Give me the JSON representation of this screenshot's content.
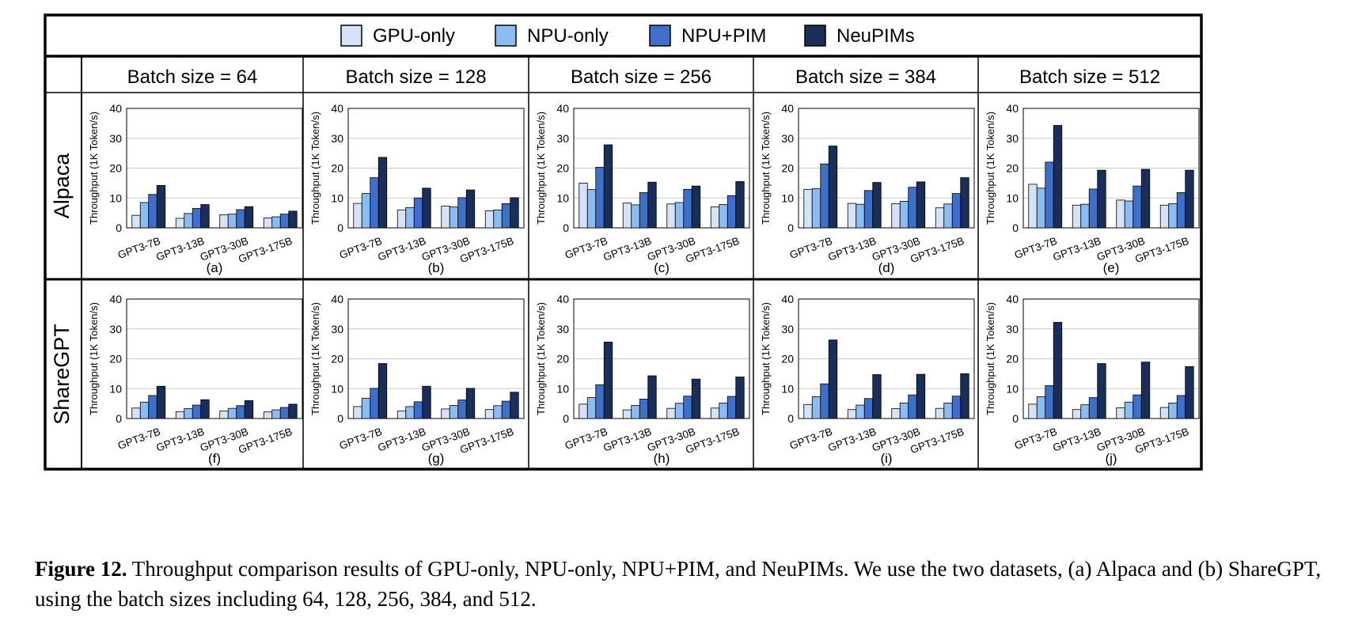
{
  "legend": [
    {
      "label": "GPU-only",
      "color": "#d6e2f5"
    },
    {
      "label": "NPU-only",
      "color": "#8cbcf4"
    },
    {
      "label": "NPU+PIM",
      "color": "#3f6fc8"
    },
    {
      "label": "NeuPIMs",
      "color": "#1a2e5a"
    }
  ],
  "columns": [
    "Batch size = 64",
    "Batch size = 128",
    "Batch size = 256",
    "Batch size = 384",
    "Batch size = 512"
  ],
  "rows": [
    "Alpaca",
    "ShareGPT"
  ],
  "caption": {
    "label": "Figure 12.",
    "text": " Throughput comparison results of GPU-only, NPU-only, NPU+PIM, and NeuPIMs. We use the two datasets, (a) Alpaca and (b) ShareGPT, using the batch sizes including 64, 128, 256, 384, and 512."
  },
  "chart_data": [
    {
      "type": "bar",
      "label": "(a)",
      "dataset": "Alpaca",
      "batch": 64,
      "ylabel": "Throughput (1K Token/s)",
      "ylim": [
        0,
        40
      ],
      "yticks": [
        0,
        10,
        20,
        30,
        40
      ],
      "categories": [
        "GPT3-7B",
        "GPT3-13B",
        "GPT3-30B",
        "GPT3-175B"
      ],
      "series": [
        {
          "name": "GPU-only",
          "values": [
            4.2,
            3.2,
            4.4,
            3.3
          ]
        },
        {
          "name": "NPU-only",
          "values": [
            8.5,
            4.8,
            4.6,
            3.7
          ]
        },
        {
          "name": "NPU+PIM",
          "values": [
            11.2,
            6.5,
            6.1,
            4.6
          ]
        },
        {
          "name": "NeuPIMs",
          "values": [
            14.2,
            7.8,
            7.1,
            5.6
          ]
        }
      ]
    },
    {
      "type": "bar",
      "label": "(b)",
      "dataset": "Alpaca",
      "batch": 128,
      "ylabel": "Throughput (1K Token/s)",
      "ylim": [
        0,
        40
      ],
      "yticks": [
        0,
        10,
        20,
        30,
        40
      ],
      "categories": [
        "GPT3-7B",
        "GPT3-13B",
        "GPT3-30B",
        "GPT3-175B"
      ],
      "series": [
        {
          "name": "GPU-only",
          "values": [
            8.2,
            6.0,
            7.3,
            5.7
          ]
        },
        {
          "name": "NPU-only",
          "values": [
            11.5,
            6.8,
            7.0,
            6.0
          ]
        },
        {
          "name": "NPU+PIM",
          "values": [
            16.8,
            10.0,
            10.1,
            8.1
          ]
        },
        {
          "name": "NeuPIMs",
          "values": [
            23.6,
            13.3,
            12.7,
            10.1
          ]
        }
      ]
    },
    {
      "type": "bar",
      "label": "(c)",
      "dataset": "Alpaca",
      "batch": 256,
      "ylabel": "Throughput (1K Token/s)",
      "ylim": [
        0,
        40
      ],
      "yticks": [
        0,
        10,
        20,
        30,
        40
      ],
      "categories": [
        "GPT3-7B",
        "GPT3-13B",
        "GPT3-30B",
        "GPT3-175B"
      ],
      "series": [
        {
          "name": "GPU-only",
          "values": [
            15.0,
            8.3,
            8.0,
            7.0
          ]
        },
        {
          "name": "NPU-only",
          "values": [
            12.8,
            7.7,
            8.5,
            7.8
          ]
        },
        {
          "name": "NPU+PIM",
          "values": [
            20.3,
            11.8,
            12.9,
            10.8
          ]
        },
        {
          "name": "NeuPIMs",
          "values": [
            27.8,
            15.3,
            14.0,
            15.5
          ]
        }
      ]
    },
    {
      "type": "bar",
      "label": "(d)",
      "dataset": "Alpaca",
      "batch": 384,
      "ylabel": "Throughput (1K Token/s)",
      "ylim": [
        0,
        40
      ],
      "yticks": [
        0,
        10,
        20,
        30,
        40
      ],
      "categories": [
        "GPT3-7B",
        "GPT3-13B",
        "GPT3-30B",
        "GPT3-175B"
      ],
      "series": [
        {
          "name": "GPU-only",
          "values": [
            12.9,
            8.2,
            8.1,
            6.7
          ]
        },
        {
          "name": "NPU-only",
          "values": [
            13.1,
            7.9,
            8.9,
            8.0
          ]
        },
        {
          "name": "NPU+PIM",
          "values": [
            21.4,
            12.5,
            13.6,
            11.5
          ]
        },
        {
          "name": "NeuPIMs",
          "values": [
            27.4,
            15.2,
            15.4,
            16.8
          ]
        }
      ]
    },
    {
      "type": "bar",
      "label": "(e)",
      "dataset": "Alpaca",
      "batch": 512,
      "ylabel": "Throughput (1K Token/s)",
      "ylim": [
        0,
        40
      ],
      "yticks": [
        0,
        10,
        20,
        30,
        40
      ],
      "categories": [
        "GPT3-7B",
        "GPT3-13B",
        "GPT3-30B",
        "GPT3-175B"
      ],
      "series": [
        {
          "name": "GPU-only",
          "values": [
            14.6,
            7.6,
            9.3,
            7.6
          ]
        },
        {
          "name": "NPU-only",
          "values": [
            13.3,
            7.9,
            9.0,
            8.1
          ]
        },
        {
          "name": "NPU+PIM",
          "values": [
            22.0,
            13.0,
            14.0,
            11.8
          ]
        },
        {
          "name": "NeuPIMs",
          "values": [
            34.3,
            19.3,
            19.6,
            19.3
          ]
        }
      ]
    },
    {
      "type": "bar",
      "label": "(f)",
      "dataset": "ShareGPT",
      "batch": 64,
      "ylabel": "Throughput (1K Token/s)",
      "ylim": [
        0,
        40
      ],
      "yticks": [
        0,
        10,
        20,
        30,
        40
      ],
      "categories": [
        "GPT3-7B",
        "GPT3-13B",
        "GPT3-30B",
        "GPT3-175B"
      ],
      "series": [
        {
          "name": "GPU-only",
          "values": [
            3.5,
            2.3,
            2.5,
            2.2
          ]
        },
        {
          "name": "NPU-only",
          "values": [
            5.5,
            3.3,
            3.4,
            2.9
          ]
        },
        {
          "name": "NPU+PIM",
          "values": [
            7.7,
            4.5,
            4.3,
            3.7
          ]
        },
        {
          "name": "NeuPIMs",
          "values": [
            10.8,
            6.3,
            6.0,
            4.8
          ]
        }
      ]
    },
    {
      "type": "bar",
      "label": "(g)",
      "dataset": "ShareGPT",
      "batch": 128,
      "ylabel": "Throughput (1K Token/s)",
      "ylim": [
        0,
        40
      ],
      "yticks": [
        0,
        10,
        20,
        30,
        40
      ],
      "categories": [
        "GPT3-7B",
        "GPT3-13B",
        "GPT3-30B",
        "GPT3-175B"
      ],
      "series": [
        {
          "name": "GPU-only",
          "values": [
            4.0,
            2.5,
            3.2,
            3.0
          ]
        },
        {
          "name": "NPU-only",
          "values": [
            6.8,
            4.0,
            4.4,
            4.3
          ]
        },
        {
          "name": "NPU+PIM",
          "values": [
            10.1,
            5.6,
            6.2,
            5.8
          ]
        },
        {
          "name": "NeuPIMs",
          "values": [
            18.4,
            10.8,
            10.1,
            8.8
          ]
        }
      ]
    },
    {
      "type": "bar",
      "label": "(h)",
      "dataset": "ShareGPT",
      "batch": 256,
      "ylabel": "Throughput (1K Token/s)",
      "ylim": [
        0,
        40
      ],
      "yticks": [
        0,
        10,
        20,
        30,
        40
      ],
      "categories": [
        "GPT3-7B",
        "GPT3-13B",
        "GPT3-30B",
        "GPT3-175B"
      ],
      "series": [
        {
          "name": "GPU-only",
          "values": [
            4.8,
            2.9,
            3.4,
            3.5
          ]
        },
        {
          "name": "NPU-only",
          "values": [
            7.0,
            4.4,
            5.1,
            5.2
          ]
        },
        {
          "name": "NPU+PIM",
          "values": [
            11.3,
            6.5,
            7.5,
            7.4
          ]
        },
        {
          "name": "NeuPIMs",
          "values": [
            25.6,
            14.3,
            13.2,
            13.9
          ]
        }
      ]
    },
    {
      "type": "bar",
      "label": "(i)",
      "dataset": "ShareGPT",
      "batch": 384,
      "ylabel": "Throughput (1K Token/s)",
      "ylim": [
        0,
        40
      ],
      "yticks": [
        0,
        10,
        20,
        30,
        40
      ],
      "categories": [
        "GPT3-7B",
        "GPT3-13B",
        "GPT3-30B",
        "GPT3-175B"
      ],
      "series": [
        {
          "name": "GPU-only",
          "values": [
            4.7,
            3.0,
            3.3,
            3.4
          ]
        },
        {
          "name": "NPU-only",
          "values": [
            7.3,
            4.5,
            5.2,
            5.2
          ]
        },
        {
          "name": "NPU+PIM",
          "values": [
            11.6,
            6.7,
            7.9,
            7.5
          ]
        },
        {
          "name": "NeuPIMs",
          "values": [
            26.3,
            14.7,
            14.8,
            15.0
          ]
        }
      ]
    },
    {
      "type": "bar",
      "label": "(j)",
      "dataset": "ShareGPT",
      "batch": 512,
      "ylabel": "Throughput (1K Token/s)",
      "ylim": [
        0,
        40
      ],
      "yticks": [
        0,
        10,
        20,
        30,
        40
      ],
      "categories": [
        "GPT3-7B",
        "GPT3-13B",
        "GPT3-30B",
        "GPT3-175B"
      ],
      "series": [
        {
          "name": "GPU-only",
          "values": [
            4.8,
            3.0,
            3.6,
            3.7
          ]
        },
        {
          "name": "NPU-only",
          "values": [
            7.3,
            4.6,
            5.5,
            5.2
          ]
        },
        {
          "name": "NPU+PIM",
          "values": [
            11.0,
            7.0,
            7.9,
            7.7
          ]
        },
        {
          "name": "NeuPIMs",
          "values": [
            32.2,
            18.4,
            18.9,
            17.4
          ]
        }
      ]
    }
  ]
}
